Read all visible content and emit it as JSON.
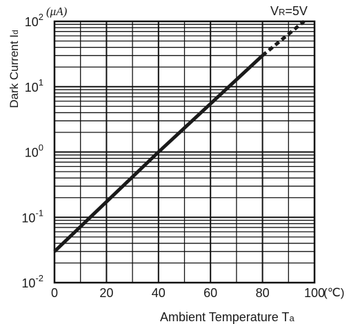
{
  "chart_data": {
    "type": "line",
    "title": "",
    "annotation": {
      "main": "V",
      "sub": "R",
      "rest": "=5V"
    },
    "xlabel": {
      "main": "Ambient Temperature T",
      "sub": "a"
    },
    "ylabel": {
      "main": "Dark Current I",
      "sub": "d"
    },
    "x_unit": "(℃)",
    "y_unit": "(μA)",
    "x_scale": "linear",
    "y_scale": "log",
    "xlim": [
      0,
      100
    ],
    "ylim": [
      0.01,
      100
    ],
    "x_ticks": [
      "0",
      "20",
      "40",
      "60",
      "80",
      "100"
    ],
    "y_ticks": [
      {
        "base": "10",
        "exp": "-2"
      },
      {
        "base": "10",
        "exp": "-1"
      },
      {
        "base": "10",
        "exp": "0"
      },
      {
        "base": "10",
        "exp": "1"
      },
      {
        "base": "10",
        "exp": "2"
      }
    ],
    "grid": true,
    "series": [
      {
        "style": "solid",
        "x": [
          0,
          40,
          80
        ],
        "y": [
          0.03,
          1.0,
          30
        ]
      },
      {
        "style": "dashed",
        "x": [
          80,
          96
        ],
        "y": [
          30,
          100
        ]
      }
    ]
  }
}
